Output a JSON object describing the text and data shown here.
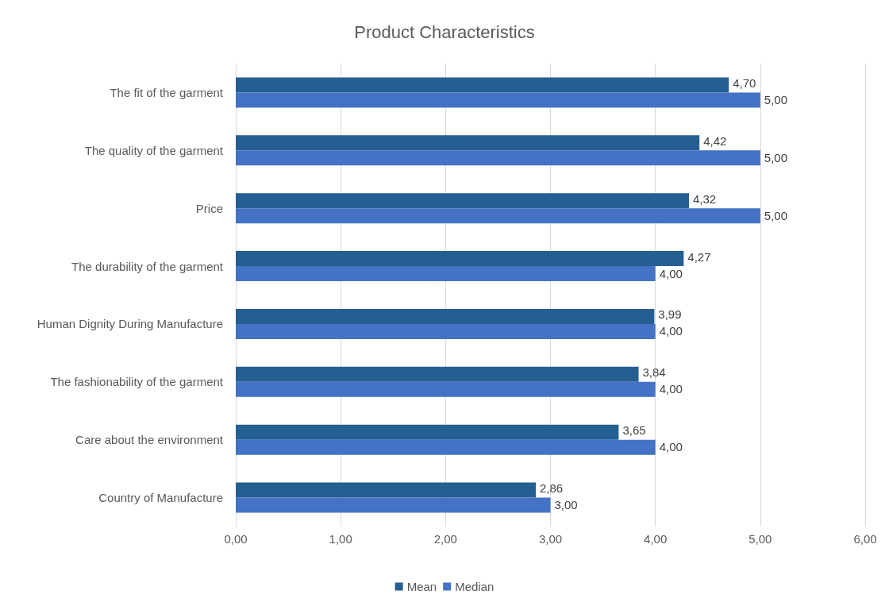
{
  "chart_data": {
    "type": "bar",
    "orientation": "horizontal",
    "title": "Product Characteristics",
    "categories": [
      "The fit of the garment",
      "The quality of the garment",
      "Price",
      "The durability of the garment",
      "Human Dignity During Manufacture",
      "The fashionability of the garment",
      "Care about the environment",
      "Country of Manufacture"
    ],
    "series": [
      {
        "name": "Mean",
        "color": "#255e91",
        "values": [
          4.7,
          4.42,
          4.32,
          4.27,
          3.99,
          3.84,
          3.65,
          2.86
        ],
        "value_labels": [
          "4,70",
          "4,42",
          "4,32",
          "4,27",
          "3,99",
          "3,84",
          "3,65",
          "2,86"
        ]
      },
      {
        "name": "Median",
        "color": "#4472c4",
        "values": [
          5,
          5,
          5,
          4,
          4,
          4,
          4,
          3
        ],
        "value_labels": [
          "5,00",
          "5,00",
          "5,00",
          "4,00",
          "4,00",
          "4,00",
          "4,00",
          "3,00"
        ]
      }
    ],
    "xlim": [
      0,
      6
    ],
    "xticks": [
      {
        "value": 0,
        "label": "0,00"
      },
      {
        "value": 1,
        "label": "1,00"
      },
      {
        "value": 2,
        "label": "2,00"
      },
      {
        "value": 3,
        "label": "3,00"
      },
      {
        "value": 4,
        "label": "4,00"
      },
      {
        "value": 5,
        "label": "5,00"
      },
      {
        "value": 6,
        "label": "6,00"
      }
    ],
    "grid": "x",
    "legend": "bottom"
  }
}
